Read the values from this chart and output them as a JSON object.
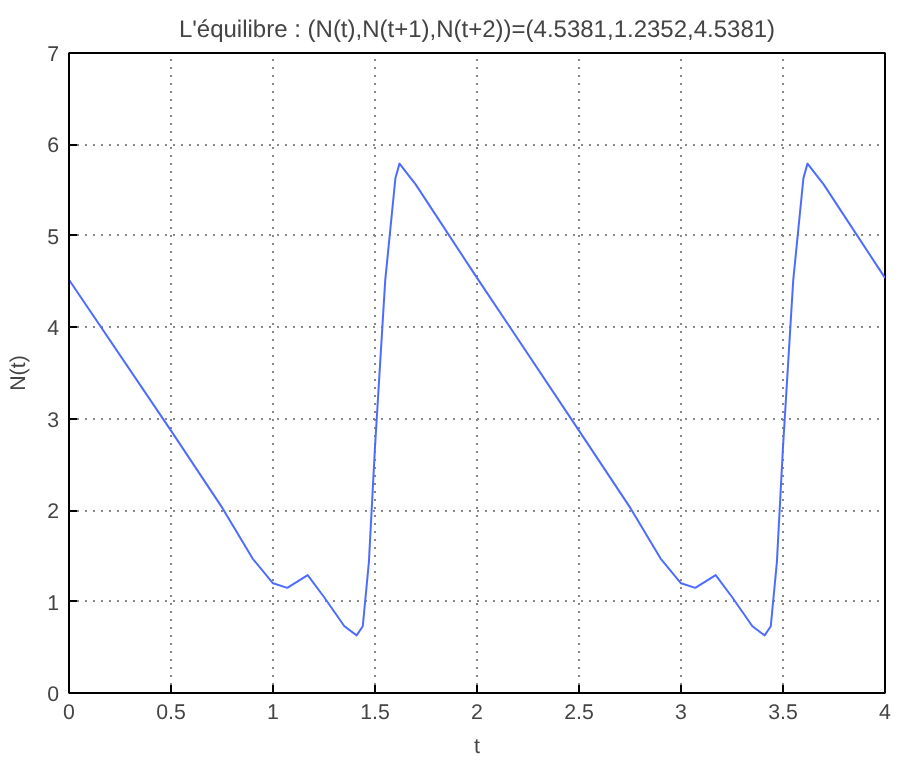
{
  "chart_data": {
    "type": "line",
    "title": "L'équilibre : (N(t),N(t+1),N(t+2))=(4.5381,1.2352,4.5381)",
    "xlabel": "t",
    "ylabel": "N(t)",
    "xlim": [
      0,
      4
    ],
    "ylim": [
      0,
      7
    ],
    "xticks": [
      0,
      0.5,
      1,
      1.5,
      2,
      2.5,
      3,
      3.5,
      4
    ],
    "yticks": [
      0,
      1,
      2,
      3,
      4,
      5,
      6,
      7
    ],
    "grid": true,
    "marker": "none",
    "line_style": "solid",
    "series": [
      {
        "color": "#4d6cff",
        "x": [
          0,
          0.5,
          0.75,
          0.9,
          1.0,
          1.07,
          1.17,
          1.25,
          1.35,
          1.41,
          1.44,
          1.47,
          1.5,
          1.55,
          1.6,
          1.62,
          1.7,
          2.0,
          2.5,
          2.75,
          2.9,
          3.0,
          3.07,
          3.17,
          3.25,
          3.35,
          3.41,
          3.44,
          3.47,
          3.5,
          3.55,
          3.6,
          3.62,
          3.7,
          4.0
        ],
        "values": [
          4.52,
          2.87,
          2.03,
          1.47,
          1.2,
          1.15,
          1.29,
          1.05,
          0.73,
          0.63,
          0.73,
          1.43,
          2.69,
          4.51,
          5.63,
          5.79,
          5.56,
          4.54,
          2.87,
          2.03,
          1.47,
          1.2,
          1.15,
          1.29,
          1.05,
          0.73,
          0.63,
          0.73,
          1.43,
          2.69,
          4.51,
          5.63,
          5.79,
          5.56,
          4.54
        ]
      }
    ]
  }
}
